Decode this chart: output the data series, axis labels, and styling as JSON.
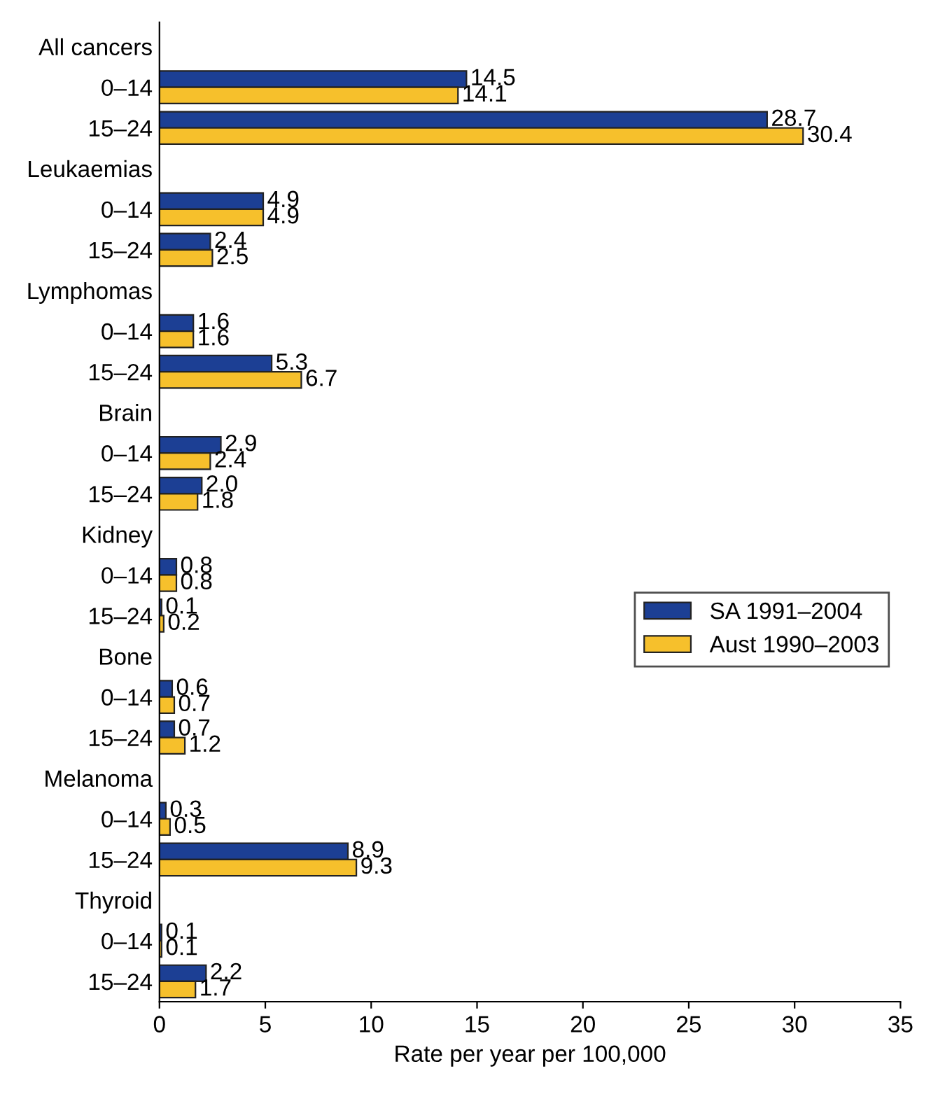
{
  "chart_data": {
    "type": "bar",
    "orientation": "horizontal",
    "xlabel": "Rate per year per 100,000",
    "categories": [
      "All cancers",
      "0–14",
      "15–24",
      "Leukaemias",
      "0–14",
      "15–24",
      "Lymphomas",
      "0–14",
      "15–24",
      "Brain",
      "0–14",
      "15–24",
      "Kidney",
      "0–14",
      "15–24",
      "Bone",
      "0–14",
      "15–24",
      "Melanoma",
      "0–14",
      "15–24",
      "Thyroid",
      "0–14",
      "15–24"
    ],
    "series": [
      {
        "name": "SA 1991–2004",
        "color": "#1c3f94",
        "values": [
          null,
          14.5,
          28.7,
          null,
          4.9,
          2.4,
          null,
          1.6,
          5.3,
          null,
          2.9,
          2.0,
          null,
          0.8,
          0.1,
          null,
          0.6,
          0.7,
          null,
          0.3,
          8.9,
          null,
          0.1,
          2.2
        ],
        "value_labels": [
          null,
          "14.5",
          "28.7",
          null,
          "4.9",
          "2.4",
          null,
          "1.6",
          "5.3",
          null,
          "2.9",
          "2.0",
          null,
          "0.8",
          "0.1",
          null,
          "0.6",
          "0.7",
          null,
          "0.3",
          "8.9",
          null,
          "0.1",
          "2.2"
        ]
      },
      {
        "name": "Aust 1990–2003",
        "color": "#f6c02c",
        "values": [
          null,
          14.1,
          30.4,
          null,
          4.9,
          2.5,
          null,
          1.6,
          6.7,
          null,
          2.4,
          1.8,
          null,
          0.8,
          0.2,
          null,
          0.7,
          1.2,
          null,
          0.5,
          9.3,
          null,
          0.1,
          1.7
        ],
        "value_labels": [
          null,
          "14.1",
          "30.4",
          null,
          "4.9",
          "2.5",
          null,
          "1.6",
          "6.7",
          null,
          "2.4",
          "1.8",
          null,
          "0.8",
          "0.2",
          null,
          "0.7",
          "1.2",
          null,
          "0.5",
          "9.3",
          null,
          "0.1",
          "1.7"
        ]
      }
    ],
    "xlim": [
      0,
      35
    ],
    "xticks": [
      0,
      5,
      10,
      15,
      20,
      25,
      30,
      35
    ],
    "grid": false,
    "legend": "right"
  }
}
